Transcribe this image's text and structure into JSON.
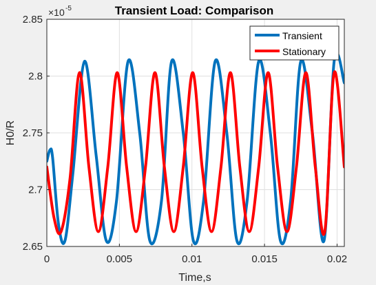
{
  "chart_data": {
    "type": "line",
    "title": "Transient Load: Comparison",
    "xlabel": "Time,s",
    "ylabel": "H0/R",
    "y_exponent_base": "×10",
    "y_exponent_power": "-5",
    "xlim": [
      0,
      0.0205
    ],
    "ylim": [
      2.65,
      2.85
    ],
    "x_ticks": [
      0,
      0.005,
      0.01,
      0.015,
      0.02
    ],
    "x_tick_labels": [
      "0",
      "0.005",
      "0.01",
      "0.015",
      "0.02"
    ],
    "y_ticks": [
      2.65,
      2.7,
      2.75,
      2.8,
      2.85
    ],
    "y_tick_labels": [
      "2.65",
      "2.7",
      "2.75",
      "2.8",
      "2.85"
    ],
    "grid": true,
    "legend_position": "top-right",
    "series": [
      {
        "name": "Transient",
        "color": "#0072bd",
        "x": [
          0,
          0.00022,
          0.0004,
          0.0008,
          0.00125,
          0.0018,
          0.0026,
          0.0034,
          0.0041,
          0.0048,
          0.0056,
          0.0064,
          0.0071,
          0.0079,
          0.0086,
          0.0094,
          0.0101,
          0.0108,
          0.0116,
          0.0124,
          0.0131,
          0.0138,
          0.0146,
          0.0154,
          0.0161,
          0.0168,
          0.0175,
          0.0183,
          0.0191,
          0.0198,
          0.0205
        ],
        "y": [
          2.725,
          2.735,
          2.728,
          2.67,
          2.655,
          2.715,
          2.813,
          2.73,
          2.655,
          2.69,
          2.813,
          2.75,
          2.655,
          2.69,
          2.813,
          2.75,
          2.655,
          2.69,
          2.813,
          2.75,
          2.655,
          2.69,
          2.813,
          2.75,
          2.655,
          2.69,
          2.813,
          2.75,
          2.655,
          2.813,
          2.794
        ]
      },
      {
        "name": "Stationary",
        "color": "#ff0000",
        "x": [
          0,
          0.0005,
          0.00098,
          0.0016,
          0.00225,
          0.0029,
          0.00355,
          0.0042,
          0.00485,
          0.0055,
          0.00615,
          0.0068,
          0.00745,
          0.0081,
          0.00875,
          0.0094,
          0.01005,
          0.0107,
          0.01135,
          0.012,
          0.01265,
          0.0133,
          0.01395,
          0.0146,
          0.01525,
          0.0159,
          0.01655,
          0.0172,
          0.01785,
          0.0185,
          0.01915,
          0.0198,
          0.0205
        ],
        "y": [
          2.72,
          2.675,
          2.663,
          2.71,
          2.803,
          2.72,
          2.663,
          2.72,
          2.803,
          2.72,
          2.663,
          2.72,
          2.803,
          2.72,
          2.663,
          2.72,
          2.803,
          2.72,
          2.663,
          2.72,
          2.803,
          2.72,
          2.663,
          2.72,
          2.803,
          2.72,
          2.663,
          2.72,
          2.803,
          2.72,
          2.663,
          2.803,
          2.72
        ]
      }
    ]
  }
}
